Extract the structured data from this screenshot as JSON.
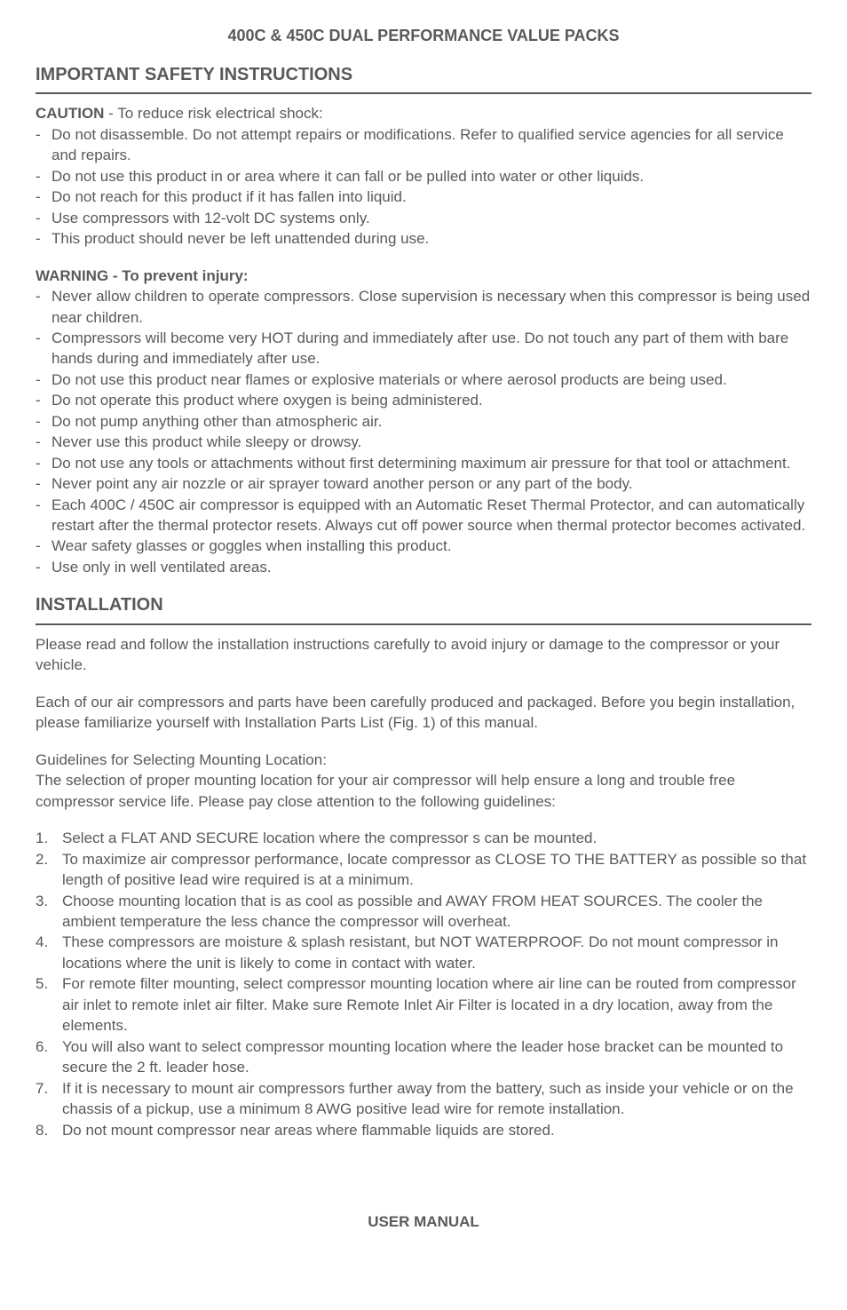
{
  "doc_title": "400C & 450C DUAL PERFORMANCE VALUE PACKS",
  "safety": {
    "heading": "IMPORTANT SAFETY INSTRUCTIONS",
    "caution_label": "CAUTION",
    "caution_intro": " - To reduce risk electrical shock:",
    "caution_items": [
      "Do not disassemble.  Do not attempt repairs or modifications.  Refer to qualified service agencies for all service and repairs.",
      "Do not use this product in or area where it can fall or be pulled into water or other liquids.",
      "Do not reach for this product if it has fallen into liquid.",
      "Use  compressors with 12-volt DC systems only.",
      "This product should never be left unattended during use."
    ],
    "warning_label": "WARNING - To prevent injury:",
    "warning_items": [
      "Never allow children to operate compressors. Close supervision is necessary when this compressor is being used near children.",
      "Compressors will become very HOT during and immediately after use.  Do not touch any part of them with bare hands during and immediately after use.",
      "Do not use this product near flames or explosive materials or where aerosol products are being used.",
      "Do not operate this product where oxygen is being administered.",
      "Do not pump anything other than atmospheric air.",
      "Never use this product while sleepy or drowsy.",
      "Do not use any tools or attachments without first determining maximum air pressure for that tool or attachment.",
      "Never point any air nozzle or air sprayer toward another person or any part of the body.",
      "Each 400C / 450C air compressor is equipped with an Automatic Reset Thermal Protector, and can automatically restart after the thermal protector resets.  Always cut off power source when thermal protector becomes activated.",
      "Wear safety glasses or goggles when installing this product.",
      "Use only in well ventilated areas."
    ]
  },
  "installation": {
    "heading": "INSTALLATION",
    "intro1": "Please read and follow the installation instructions carefully to avoid injury or damage to the compressor or your vehicle.",
    "intro2": "Each of our air compressors and parts have been carefully produced and packaged.  Before you begin installation, please familiarize yourself with Installation Parts List (Fig. 1) of this manual.",
    "guidelines_heading": "Guidelines for Selecting Mounting Location:",
    "guidelines_intro": "The selection of proper mounting location for your air compressor will help ensure a long and trouble free compressor service life. Please pay close attention to the following guidelines:",
    "steps": [
      "Select a FLAT AND SECURE location where the compressor s can be mounted.",
      "To maximize air compressor performance, locate compressor as CLOSE TO THE BATTERY as possible so that length of positive lead wire required is at a minimum.",
      "Choose mounting location that is as cool as possible and AWAY FROM HEAT SOURCES. The cooler the ambient temperature the less chance the compressor will overheat.",
      "These compressors are moisture & splash resistant, but NOT WATERPROOF. Do not mount compressor in locations where the unit is likely to come in contact with water.",
      "For remote filter mounting, select compressor mounting location where air line can be routed from compressor air inlet to remote inlet air filter.  Make sure Remote Inlet Air Filter is located in a dry location, away from the elements.",
      "You will also want to select compressor mounting location where the leader hose bracket can be mounted to secure the 2 ft. leader hose.",
      "If it is necessary to mount air compressors further away from the battery, such as inside your vehicle or on the chassis of a pickup, use a minimum 8 AWG positive lead wire for remote installation.",
      "Do not mount compressor near areas where flammable liquids are stored."
    ]
  },
  "footer": "USER MANUAL"
}
